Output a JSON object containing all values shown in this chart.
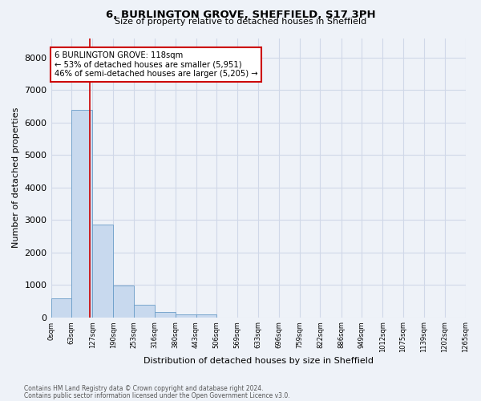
{
  "title": "6, BURLINGTON GROVE, SHEFFIELD, S17 3PH",
  "subtitle": "Size of property relative to detached houses in Sheffield",
  "xlabel": "Distribution of detached houses by size in Sheffield",
  "ylabel": "Number of detached properties",
  "annotation_line1": "6 BURLINGTON GROVE: 118sqm",
  "annotation_line2": "← 53% of detached houses are smaller (5,951)",
  "annotation_line3": "46% of semi-detached houses are larger (5,205) →",
  "footer1": "Contains HM Land Registry data © Crown copyright and database right 2024.",
  "footer2": "Contains public sector information licensed under the Open Government Licence v3.0.",
  "bar_color": "#c8d9ee",
  "bar_edge_color": "#6a9dc8",
  "vline_color": "#cc0000",
  "annotation_box_color": "#cc0000",
  "background_color": "#eef2f8",
  "grid_color": "#d0d8e8",
  "bin_edges": [
    0,
    63,
    127,
    190,
    253,
    316,
    380,
    443,
    506,
    569,
    633,
    696,
    759,
    822,
    886,
    949,
    1012,
    1075,
    1139,
    1202,
    1265
  ],
  "bin_labels": [
    "0sqm",
    "63sqm",
    "127sqm",
    "190sqm",
    "253sqm",
    "316sqm",
    "380sqm",
    "443sqm",
    "506sqm",
    "569sqm",
    "633sqm",
    "696sqm",
    "759sqm",
    "822sqm",
    "886sqm",
    "949sqm",
    "1012sqm",
    "1075sqm",
    "1139sqm",
    "1202sqm",
    "1265sqm"
  ],
  "bar_heights": [
    590,
    6380,
    2850,
    980,
    390,
    175,
    100,
    85,
    0,
    0,
    0,
    0,
    0,
    0,
    0,
    0,
    0,
    0,
    0,
    0
  ],
  "property_size": 118,
  "ylim": [
    0,
    8600
  ],
  "yticks": [
    0,
    1000,
    2000,
    3000,
    4000,
    5000,
    6000,
    7000,
    8000
  ]
}
